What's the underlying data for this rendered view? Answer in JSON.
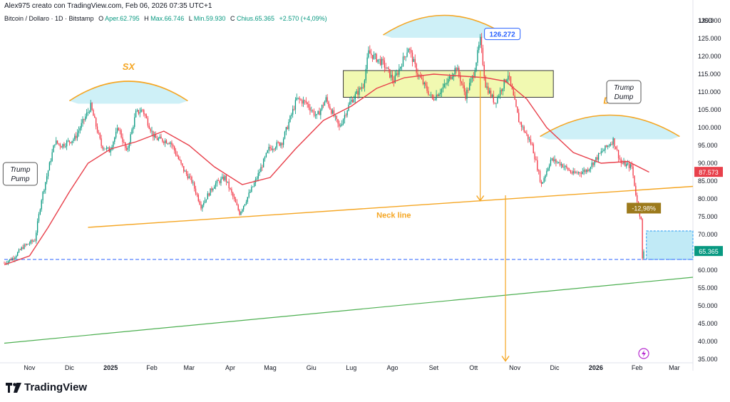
{
  "header": {
    "credit": "Alex975 creato con TradingView.com, Feb 06, 2026 07:35 UTC+1"
  },
  "legend": {
    "symbol": "Bitcoin / Dollaro · 1D · Bitstamp",
    "o_label": "O",
    "open": "Aper.62.795",
    "h_label": "H",
    "high": "Max.66.746",
    "l_label": "L",
    "low": "Min.59.930",
    "c_label": "C",
    "close": "Chius.65.365",
    "change": "+2.570 (+4,09%)"
  },
  "branding": {
    "logo_text": "TradingView",
    "logo_icon": "tradingview-logo-icon"
  },
  "colors": {
    "up": "#089981",
    "down": "#f23645",
    "ma": "#e8404b",
    "neck": "#f5a623",
    "arcs": "#f5a623",
    "support": "#4caf50",
    "current": "#2962ff",
    "zone": "#f0f8a8"
  },
  "chart_data": {
    "type": "candlestick",
    "currency": "USD",
    "ylim": [
      34000,
      133000
    ],
    "y_ticks": [
      35000,
      40000,
      45000,
      50000,
      55000,
      60000,
      65000,
      70000,
      75000,
      80000,
      85000,
      90000,
      95000,
      100000,
      105000,
      110000,
      115000,
      120000,
      125000,
      130000
    ],
    "y_tick_labels": [
      "35.000",
      "40.000",
      "45.000",
      "50.000",
      "55.000",
      "60.000",
      "65.000",
      "70.000",
      "75.000",
      "80.000",
      "85.000",
      "90.000",
      "95.000",
      "100.000",
      "105.000",
      "110.000",
      "115.000",
      "120.000",
      "125.000",
      "130.000"
    ],
    "x_range": [
      "2024-10-13",
      "2026-03-15"
    ],
    "x_ticks": [
      {
        "date": "2024-11-01",
        "label": "Nov"
      },
      {
        "date": "2024-12-01",
        "label": "Dic"
      },
      {
        "date": "2025-01-01",
        "label": "2025"
      },
      {
        "date": "2025-02-01",
        "label": "Feb"
      },
      {
        "date": "2025-03-01",
        "label": "Mar"
      },
      {
        "date": "2025-04-01",
        "label": "Apr"
      },
      {
        "date": "2025-05-01",
        "label": "Mag"
      },
      {
        "date": "2025-06-01",
        "label": "Giu"
      },
      {
        "date": "2025-07-01",
        "label": "Lug"
      },
      {
        "date": "2025-08-01",
        "label": "Ago"
      },
      {
        "date": "2025-09-01",
        "label": "Set"
      },
      {
        "date": "2025-10-01",
        "label": "Ott"
      },
      {
        "date": "2025-11-01",
        "label": "Nov"
      },
      {
        "date": "2025-12-01",
        "label": "Dic"
      },
      {
        "date": "2026-01-01",
        "label": "2026"
      },
      {
        "date": "2026-02-01",
        "label": "Feb"
      },
      {
        "date": "2026-03-01",
        "label": "Mar"
      }
    ],
    "price_path": [
      [
        "2024-10-13",
        62000
      ],
      [
        "2024-10-20",
        63500
      ],
      [
        "2024-10-27",
        66500
      ],
      [
        "2024-11-05",
        68500
      ],
      [
        "2024-11-10",
        80000
      ],
      [
        "2024-11-20",
        96000
      ],
      [
        "2024-11-25",
        95000
      ],
      [
        "2024-12-05",
        97000
      ],
      [
        "2024-12-17",
        106000
      ],
      [
        "2024-12-25",
        95000
      ],
      [
        "2024-12-31",
        93500
      ],
      [
        "2025-01-07",
        100000
      ],
      [
        "2025-01-13",
        93000
      ],
      [
        "2025-01-20",
        104000
      ],
      [
        "2025-01-25",
        105000
      ],
      [
        "2025-02-03",
        97000
      ],
      [
        "2025-02-15",
        96000
      ],
      [
        "2025-02-25",
        88000
      ],
      [
        "2025-03-03",
        85000
      ],
      [
        "2025-03-10",
        78000
      ],
      [
        "2025-03-20",
        84000
      ],
      [
        "2025-03-28",
        86000
      ],
      [
        "2025-04-08",
        76000
      ],
      [
        "2025-04-20",
        85000
      ],
      [
        "2025-04-30",
        94000
      ],
      [
        "2025-05-10",
        96000
      ],
      [
        "2025-05-21",
        108000
      ],
      [
        "2025-05-28",
        107000
      ],
      [
        "2025-06-05",
        103000
      ],
      [
        "2025-06-12",
        108000
      ],
      [
        "2025-06-22",
        100000
      ],
      [
        "2025-06-30",
        107000
      ],
      [
        "2025-07-10",
        112000
      ],
      [
        "2025-07-14",
        121000
      ],
      [
        "2025-07-25",
        118000
      ],
      [
        "2025-08-02",
        113000
      ],
      [
        "2025-08-13",
        122500
      ],
      [
        "2025-08-20",
        115000
      ],
      [
        "2025-08-31",
        108000
      ],
      [
        "2025-09-10",
        112000
      ],
      [
        "2025-09-18",
        117000
      ],
      [
        "2025-09-25",
        109000
      ],
      [
        "2025-10-01",
        115000
      ],
      [
        "2025-10-06",
        124500
      ],
      [
        "2025-10-10",
        112000
      ],
      [
        "2025-10-17",
        107000
      ],
      [
        "2025-10-27",
        115000
      ],
      [
        "2025-11-04",
        102000
      ],
      [
        "2025-11-14",
        95000
      ],
      [
        "2025-11-21",
        84000
      ],
      [
        "2025-11-28",
        91000
      ],
      [
        "2025-12-05",
        90000
      ],
      [
        "2025-12-15",
        87000
      ],
      [
        "2025-12-25",
        88000
      ],
      [
        "2026-01-05",
        93000
      ],
      [
        "2026-01-14",
        96500
      ],
      [
        "2026-01-20",
        90000
      ],
      [
        "2026-01-28",
        89000
      ],
      [
        "2026-02-01",
        79000
      ],
      [
        "2026-02-04",
        74000
      ],
      [
        "2026-02-05",
        63000
      ],
      [
        "2026-02-06",
        65365
      ]
    ],
    "moving_average_path": [
      [
        "2024-10-13",
        61500
      ],
      [
        "2024-11-01",
        64000
      ],
      [
        "2024-11-15",
        72000
      ],
      [
        "2024-12-01",
        82000
      ],
      [
        "2024-12-15",
        90000
      ],
      [
        "2025-01-01",
        94000
      ],
      [
        "2025-01-20",
        96000
      ],
      [
        "2025-02-10",
        99000
      ],
      [
        "2025-03-01",
        95000
      ],
      [
        "2025-03-20",
        89000
      ],
      [
        "2025-04-10",
        84000
      ],
      [
        "2025-05-01",
        86000
      ],
      [
        "2025-05-20",
        94000
      ],
      [
        "2025-06-10",
        102000
      ],
      [
        "2025-07-01",
        106000
      ],
      [
        "2025-07-20",
        111000
      ],
      [
        "2025-08-10",
        114000
      ],
      [
        "2025-09-01",
        115000
      ],
      [
        "2025-09-20",
        114500
      ],
      [
        "2025-10-10",
        114000
      ],
      [
        "2025-10-25",
        113000
      ],
      [
        "2025-11-10",
        108000
      ],
      [
        "2025-11-25",
        100000
      ],
      [
        "2025-12-15",
        93000
      ],
      [
        "2026-01-05",
        90000
      ],
      [
        "2026-01-25",
        90500
      ],
      [
        "2026-02-10",
        87500
      ]
    ],
    "current_price": 65365,
    "current_price_label": "65.365",
    "ma_value": 87573,
    "ma_value_label": "87.573",
    "peak_price": 126272,
    "peak_label": "126.272",
    "peak_date": "2025-10-06",
    "pct_change_label": "-12,98%",
    "dashed_level": 63000,
    "neck_line": {
      "from": [
        "2024-12-15",
        72000
      ],
      "to": [
        "2026-03-15",
        83500
      ],
      "label": "Neck line"
    },
    "support_line": {
      "from": [
        "2024-10-13",
        39500
      ],
      "to": [
        "2026-03-15",
        58000
      ]
    },
    "consolidation_zone": {
      "from": "2025-06-25",
      "to": "2025-11-30",
      "y": [
        108500,
        116000
      ]
    },
    "target_zone": {
      "from": "2026-02-08",
      "to": "2026-03-15",
      "y": [
        63000,
        71000
      ]
    },
    "shoulders": [
      {
        "label": "SX",
        "from": "2024-12-01",
        "to": "2025-02-28",
        "level": 107500,
        "top": 113000
      },
      {
        "label": "",
        "from": "2025-07-25",
        "to": "2025-10-25",
        "level": 126000,
        "top": 131500
      },
      {
        "label": "DX",
        "from": "2025-11-20",
        "to": "2026-03-05",
        "level": 97500,
        "top": 103500
      }
    ],
    "target_arrows": [
      {
        "date": "2025-10-06",
        "from": 116000,
        "to": 79500
      },
      {
        "date": "2025-10-25",
        "from": 81000,
        "to": 34500
      }
    ],
    "annotations": [
      {
        "text": [
          "Trump",
          "Pump"
        ],
        "date": "2024-10-25",
        "price": 87000
      },
      {
        "text": [
          "Trump",
          "Dump"
        ],
        "date": "2026-01-22",
        "price": 110000
      }
    ]
  }
}
